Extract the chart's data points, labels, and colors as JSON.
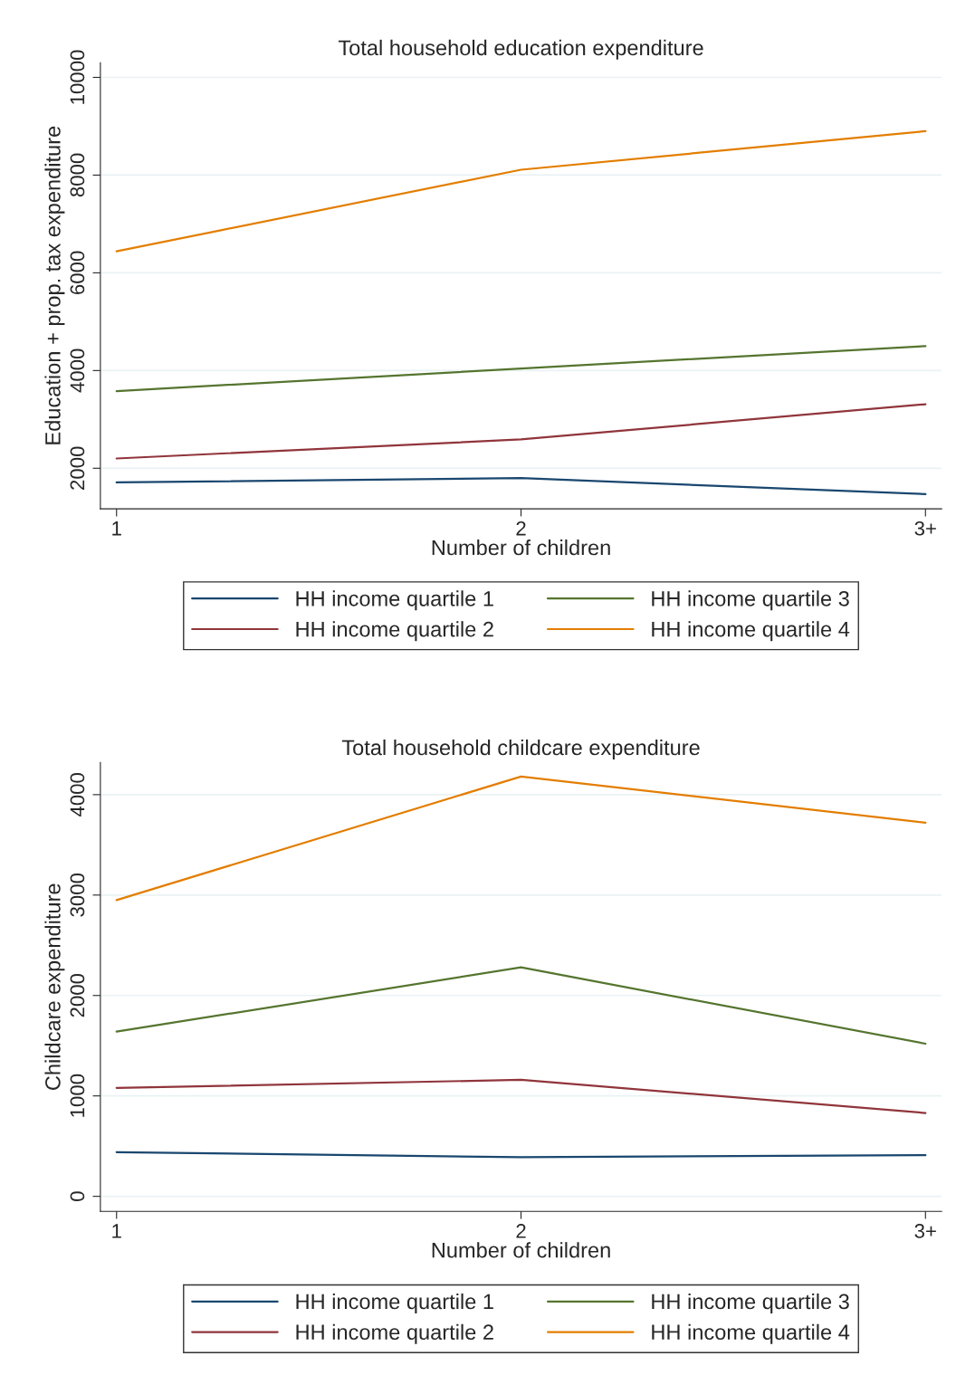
{
  "chart_data": [
    {
      "type": "line",
      "title": "Total household education expenditure",
      "xlabel": "Number of children",
      "ylabel": "Education + prop. tax expenditure",
      "categories": [
        "1",
        "2",
        "3+"
      ],
      "ylim": [
        1170,
        10300
      ],
      "yticks": [
        2000,
        4000,
        6000,
        8000,
        10000
      ],
      "grid": "y",
      "legend": "bottom",
      "marker": "none",
      "line_style": "solid",
      "series": [
        {
          "name": "HH income quartile 1",
          "color": "#1a476f",
          "values": [
            1710,
            1800,
            1470
          ]
        },
        {
          "name": "HH income quartile 2",
          "color": "#90353b",
          "values": [
            2200,
            2590,
            3310
          ]
        },
        {
          "name": "HH income quartile 3",
          "color": "#55752f",
          "values": [
            3580,
            4040,
            4500
          ]
        },
        {
          "name": "HH income quartile 4",
          "color": "#e37e00",
          "values": [
            6440,
            8110,
            8900
          ]
        }
      ]
    },
    {
      "type": "line",
      "title": "Total household childcare expenditure",
      "xlabel": "Number of children",
      "ylabel": "Childcare expenditure",
      "categories": [
        "1",
        "2",
        "3+"
      ],
      "ylim": [
        -150,
        4320
      ],
      "yticks": [
        0,
        1000,
        2000,
        3000,
        4000
      ],
      "grid": "y",
      "legend": "bottom",
      "marker": "none",
      "line_style": "solid",
      "series": [
        {
          "name": "HH income quartile 1",
          "color": "#1a476f",
          "values": [
            440,
            390,
            410
          ]
        },
        {
          "name": "HH income quartile 2",
          "color": "#90353b",
          "values": [
            1080,
            1160,
            830
          ]
        },
        {
          "name": "HH income quartile 3",
          "color": "#55752f",
          "values": [
            1640,
            2280,
            1520
          ]
        },
        {
          "name": "HH income quartile 4",
          "color": "#e37e00",
          "values": [
            2950,
            4180,
            3720
          ]
        }
      ]
    }
  ]
}
